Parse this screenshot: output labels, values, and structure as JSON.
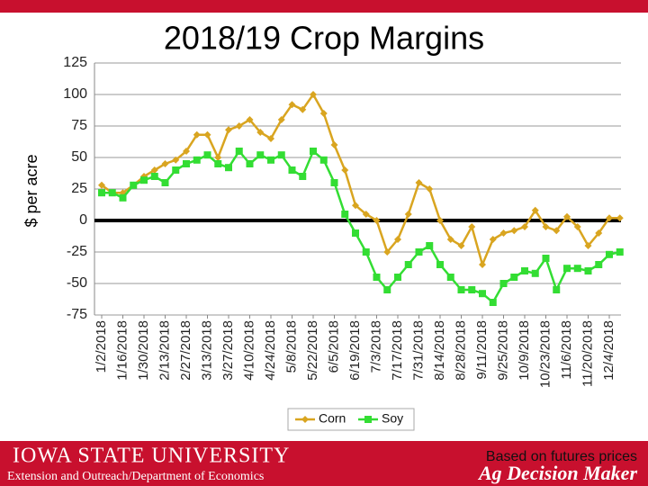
{
  "chart_data": {
    "type": "line",
    "title": "2018/19 Crop Margins",
    "ylabel": "$ per acre",
    "ylim": [
      -75,
      125
    ],
    "yticks": [
      -75,
      -50,
      -25,
      0,
      25,
      50,
      75,
      100,
      125
    ],
    "grid": true,
    "legend": "bottom",
    "xticks": [
      "1/2/2018",
      "1/16/2018",
      "1/30/2018",
      "2/13/2018",
      "2/27/2018",
      "3/13/2018",
      "3/27/2018",
      "4/10/2018",
      "4/24/2018",
      "5/8/2018",
      "5/22/2018",
      "6/5/2018",
      "6/19/2018",
      "7/3/2018",
      "7/17/2018",
      "7/31/2018",
      "8/14/2018",
      "8/28/2018",
      "9/11/2018",
      "9/25/2018",
      "10/9/2018",
      "10/23/2018",
      "11/6/2018",
      "11/20/2018",
      "12/4/2018"
    ],
    "x": [
      "1/2/2018",
      "1/9/2018",
      "1/16/2018",
      "1/23/2018",
      "1/30/2018",
      "2/6/2018",
      "2/13/2018",
      "2/20/2018",
      "2/27/2018",
      "3/6/2018",
      "3/13/2018",
      "3/20/2018",
      "3/27/2018",
      "4/3/2018",
      "4/10/2018",
      "4/17/2018",
      "4/24/2018",
      "5/1/2018",
      "5/8/2018",
      "5/15/2018",
      "5/22/2018",
      "5/29/2018",
      "6/5/2018",
      "6/12/2018",
      "6/19/2018",
      "6/26/2018",
      "7/3/2018",
      "7/10/2018",
      "7/17/2018",
      "7/24/2018",
      "7/31/2018",
      "8/7/2018",
      "8/14/2018",
      "8/21/2018",
      "8/28/2018",
      "9/4/2018",
      "9/11/2018",
      "9/18/2018",
      "9/25/2018",
      "10/2/2018",
      "10/9/2018",
      "10/16/2018",
      "10/23/2018",
      "10/30/2018",
      "11/6/2018",
      "11/13/2018",
      "11/20/2018",
      "11/27/2018",
      "12/4/2018",
      "12/11/2018"
    ],
    "series": [
      {
        "name": "Corn",
        "color": "#d9a520",
        "marker": "diamond",
        "values": [
          28,
          22,
          22,
          28,
          35,
          40,
          45,
          48,
          55,
          68,
          68,
          50,
          72,
          75,
          80,
          70,
          65,
          80,
          92,
          88,
          100,
          85,
          60,
          40,
          12,
          5,
          0,
          -25,
          -15,
          5,
          30,
          25,
          0,
          -15,
          -20,
          -5,
          -35,
          -15,
          -10,
          -8,
          -5,
          8,
          -5,
          -8,
          3,
          -5,
          -20,
          -10,
          2,
          2
        ]
      },
      {
        "name": "Soy",
        "color": "#33dd33",
        "marker": "square",
        "values": [
          22,
          22,
          18,
          28,
          32,
          35,
          30,
          40,
          45,
          48,
          52,
          45,
          42,
          55,
          45,
          52,
          48,
          52,
          40,
          35,
          55,
          48,
          30,
          5,
          -10,
          -25,
          -45,
          -55,
          -45,
          -35,
          -25,
          -20,
          -35,
          -45,
          -55,
          -55,
          -58,
          -65,
          -50,
          -45,
          -40,
          -42,
          -30,
          -55,
          -38,
          -38,
          -40,
          -35,
          -27,
          -25
        ]
      }
    ]
  },
  "footer": {
    "university": "IOWA STATE UNIVERSITY",
    "department": "Extension and Outreach/Department of Economics",
    "note": "Based on futures prices",
    "brand": "Ag Decision Maker"
  }
}
